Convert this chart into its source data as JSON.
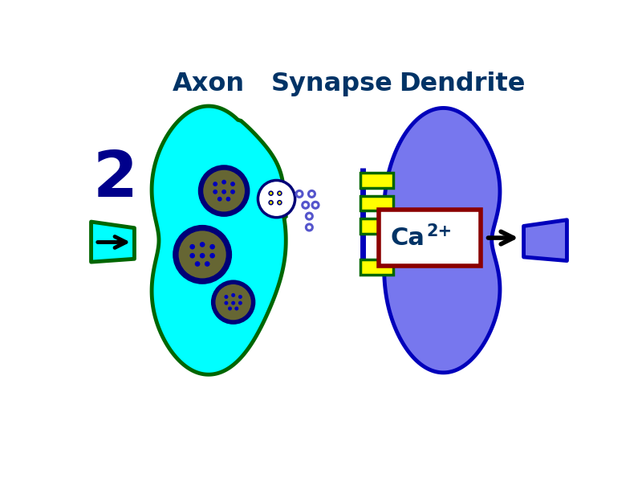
{
  "bg_color": "#ffffff",
  "axon_fill": "#00ffff",
  "axon_stroke": "#006600",
  "dendrite_fill": "#7777ee",
  "dendrite_stroke": "#0000bb",
  "vesicle_outer_fill": "#000077",
  "vesicle_inner_fill": "#666633",
  "vesicle_dot_color": "#0000bb",
  "nt_dot_color": "#5555cc",
  "receptor_fill": "#ffff00",
  "receptor_stroke": "#006600",
  "ca_box_fill": "#ffffff",
  "ca_box_stroke": "#8b0000",
  "ca_text_color": "#003366",
  "arrow_color": "#000000",
  "label_color": "#003366",
  "stage_number_color": "#00008b",
  "axon_label": "Axon",
  "synapse_label": "Synapse",
  "dendrite_label": "Dendrite",
  "stage_number": "2"
}
